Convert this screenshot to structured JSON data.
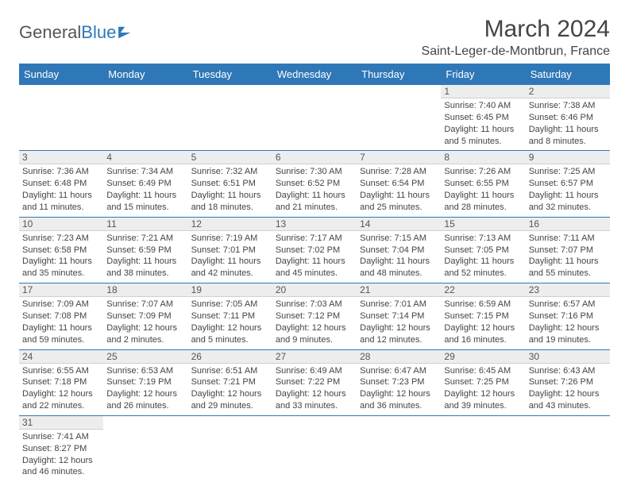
{
  "logo": {
    "text1": "General",
    "text2": "Blue"
  },
  "title": "March 2024",
  "location": "Saint-Leger-de-Montbrun, France",
  "colors": {
    "header_bg": "#2f78b7",
    "header_text": "#ffffff",
    "daynum_bg": "#ededed",
    "line_color": "#2f78b7",
    "text": "#444444"
  },
  "day_headers": [
    "Sunday",
    "Monday",
    "Tuesday",
    "Wednesday",
    "Thursday",
    "Friday",
    "Saturday"
  ],
  "weeks": [
    [
      null,
      null,
      null,
      null,
      null,
      {
        "n": "1",
        "sr": "Sunrise: 7:40 AM",
        "ss": "Sunset: 6:45 PM",
        "d1": "Daylight: 11 hours",
        "d2": "and 5 minutes."
      },
      {
        "n": "2",
        "sr": "Sunrise: 7:38 AM",
        "ss": "Sunset: 6:46 PM",
        "d1": "Daylight: 11 hours",
        "d2": "and 8 minutes."
      }
    ],
    [
      {
        "n": "3",
        "sr": "Sunrise: 7:36 AM",
        "ss": "Sunset: 6:48 PM",
        "d1": "Daylight: 11 hours",
        "d2": "and 11 minutes."
      },
      {
        "n": "4",
        "sr": "Sunrise: 7:34 AM",
        "ss": "Sunset: 6:49 PM",
        "d1": "Daylight: 11 hours",
        "d2": "and 15 minutes."
      },
      {
        "n": "5",
        "sr": "Sunrise: 7:32 AM",
        "ss": "Sunset: 6:51 PM",
        "d1": "Daylight: 11 hours",
        "d2": "and 18 minutes."
      },
      {
        "n": "6",
        "sr": "Sunrise: 7:30 AM",
        "ss": "Sunset: 6:52 PM",
        "d1": "Daylight: 11 hours",
        "d2": "and 21 minutes."
      },
      {
        "n": "7",
        "sr": "Sunrise: 7:28 AM",
        "ss": "Sunset: 6:54 PM",
        "d1": "Daylight: 11 hours",
        "d2": "and 25 minutes."
      },
      {
        "n": "8",
        "sr": "Sunrise: 7:26 AM",
        "ss": "Sunset: 6:55 PM",
        "d1": "Daylight: 11 hours",
        "d2": "and 28 minutes."
      },
      {
        "n": "9",
        "sr": "Sunrise: 7:25 AM",
        "ss": "Sunset: 6:57 PM",
        "d1": "Daylight: 11 hours",
        "d2": "and 32 minutes."
      }
    ],
    [
      {
        "n": "10",
        "sr": "Sunrise: 7:23 AM",
        "ss": "Sunset: 6:58 PM",
        "d1": "Daylight: 11 hours",
        "d2": "and 35 minutes."
      },
      {
        "n": "11",
        "sr": "Sunrise: 7:21 AM",
        "ss": "Sunset: 6:59 PM",
        "d1": "Daylight: 11 hours",
        "d2": "and 38 minutes."
      },
      {
        "n": "12",
        "sr": "Sunrise: 7:19 AM",
        "ss": "Sunset: 7:01 PM",
        "d1": "Daylight: 11 hours",
        "d2": "and 42 minutes."
      },
      {
        "n": "13",
        "sr": "Sunrise: 7:17 AM",
        "ss": "Sunset: 7:02 PM",
        "d1": "Daylight: 11 hours",
        "d2": "and 45 minutes."
      },
      {
        "n": "14",
        "sr": "Sunrise: 7:15 AM",
        "ss": "Sunset: 7:04 PM",
        "d1": "Daylight: 11 hours",
        "d2": "and 48 minutes."
      },
      {
        "n": "15",
        "sr": "Sunrise: 7:13 AM",
        "ss": "Sunset: 7:05 PM",
        "d1": "Daylight: 11 hours",
        "d2": "and 52 minutes."
      },
      {
        "n": "16",
        "sr": "Sunrise: 7:11 AM",
        "ss": "Sunset: 7:07 PM",
        "d1": "Daylight: 11 hours",
        "d2": "and 55 minutes."
      }
    ],
    [
      {
        "n": "17",
        "sr": "Sunrise: 7:09 AM",
        "ss": "Sunset: 7:08 PM",
        "d1": "Daylight: 11 hours",
        "d2": "and 59 minutes."
      },
      {
        "n": "18",
        "sr": "Sunrise: 7:07 AM",
        "ss": "Sunset: 7:09 PM",
        "d1": "Daylight: 12 hours",
        "d2": "and 2 minutes."
      },
      {
        "n": "19",
        "sr": "Sunrise: 7:05 AM",
        "ss": "Sunset: 7:11 PM",
        "d1": "Daylight: 12 hours",
        "d2": "and 5 minutes."
      },
      {
        "n": "20",
        "sr": "Sunrise: 7:03 AM",
        "ss": "Sunset: 7:12 PM",
        "d1": "Daylight: 12 hours",
        "d2": "and 9 minutes."
      },
      {
        "n": "21",
        "sr": "Sunrise: 7:01 AM",
        "ss": "Sunset: 7:14 PM",
        "d1": "Daylight: 12 hours",
        "d2": "and 12 minutes."
      },
      {
        "n": "22",
        "sr": "Sunrise: 6:59 AM",
        "ss": "Sunset: 7:15 PM",
        "d1": "Daylight: 12 hours",
        "d2": "and 16 minutes."
      },
      {
        "n": "23",
        "sr": "Sunrise: 6:57 AM",
        "ss": "Sunset: 7:16 PM",
        "d1": "Daylight: 12 hours",
        "d2": "and 19 minutes."
      }
    ],
    [
      {
        "n": "24",
        "sr": "Sunrise: 6:55 AM",
        "ss": "Sunset: 7:18 PM",
        "d1": "Daylight: 12 hours",
        "d2": "and 22 minutes."
      },
      {
        "n": "25",
        "sr": "Sunrise: 6:53 AM",
        "ss": "Sunset: 7:19 PM",
        "d1": "Daylight: 12 hours",
        "d2": "and 26 minutes."
      },
      {
        "n": "26",
        "sr": "Sunrise: 6:51 AM",
        "ss": "Sunset: 7:21 PM",
        "d1": "Daylight: 12 hours",
        "d2": "and 29 minutes."
      },
      {
        "n": "27",
        "sr": "Sunrise: 6:49 AM",
        "ss": "Sunset: 7:22 PM",
        "d1": "Daylight: 12 hours",
        "d2": "and 33 minutes."
      },
      {
        "n": "28",
        "sr": "Sunrise: 6:47 AM",
        "ss": "Sunset: 7:23 PM",
        "d1": "Daylight: 12 hours",
        "d2": "and 36 minutes."
      },
      {
        "n": "29",
        "sr": "Sunrise: 6:45 AM",
        "ss": "Sunset: 7:25 PM",
        "d1": "Daylight: 12 hours",
        "d2": "and 39 minutes."
      },
      {
        "n": "30",
        "sr": "Sunrise: 6:43 AM",
        "ss": "Sunset: 7:26 PM",
        "d1": "Daylight: 12 hours",
        "d2": "and 43 minutes."
      }
    ],
    [
      {
        "n": "31",
        "sr": "Sunrise: 7:41 AM",
        "ss": "Sunset: 8:27 PM",
        "d1": "Daylight: 12 hours",
        "d2": "and 46 minutes."
      },
      null,
      null,
      null,
      null,
      null,
      null
    ]
  ]
}
